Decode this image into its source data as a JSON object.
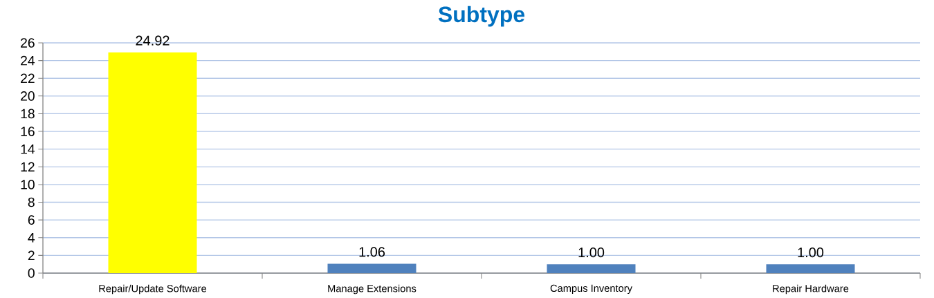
{
  "chart_data": {
    "type": "bar",
    "title": "Subtype",
    "categories": [
      "Repair/Update Software",
      "Manage Extensions",
      "Campus Inventory",
      "Repair Hardware"
    ],
    "values": [
      24.92,
      1.06,
      1.0,
      1.0
    ],
    "colors": [
      "#ffff00",
      "#4f81bd",
      "#4f81bd",
      "#4f81bd"
    ],
    "value_labels": [
      "24.92",
      "1.06",
      "1.00",
      "1.00"
    ],
    "ylim": [
      0,
      26
    ],
    "yticks": [
      0,
      2,
      4,
      6,
      8,
      10,
      12,
      14,
      16,
      18,
      20,
      22,
      24,
      26
    ],
    "grid": "y"
  }
}
